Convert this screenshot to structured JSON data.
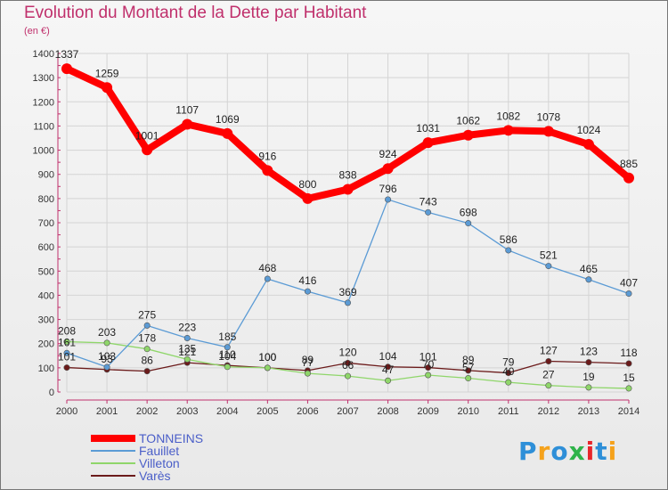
{
  "chart_data": {
    "type": "line",
    "title": "Evolution du Montant de la Dette par Habitant",
    "subtitle": "(en €)",
    "x": [
      "2000",
      "2001",
      "2002",
      "2003",
      "2004",
      "2005",
      "2006",
      "2007",
      "2008",
      "2009",
      "2010",
      "2011",
      "2012",
      "2013",
      "2014"
    ],
    "ylim": [
      0,
      1400
    ],
    "yticks": [
      0,
      100,
      200,
      300,
      400,
      500,
      600,
      700,
      800,
      900,
      1000,
      1100,
      1200,
      1300,
      1400
    ],
    "grid": true,
    "legend_position": "bottom-left",
    "series": [
      {
        "name": "TONNEINS",
        "color": "#ff0000",
        "values": [
          1337,
          1259,
          1001,
          1107,
          1069,
          916,
          800,
          838,
          924,
          1031,
          1062,
          1082,
          1078,
          1024,
          885
        ]
      },
      {
        "name": "Fauillet",
        "color": "#5b9bd5",
        "values": [
          161,
          103,
          275,
          223,
          185,
          468,
          416,
          369,
          796,
          743,
          698,
          586,
          521,
          465,
          407
        ]
      },
      {
        "name": "Villeton",
        "color": "#8fd66a",
        "values": [
          208,
          203,
          178,
          135,
          104,
          100,
          77,
          66,
          47,
          70,
          57,
          40,
          27,
          19,
          15
        ]
      },
      {
        "name": "Varès",
        "color": "#6b1a1a",
        "values": [
          101,
          93,
          86,
          121,
          110,
          100,
          89,
          120,
          104,
          101,
          89,
          79,
          127,
          123,
          118
        ]
      }
    ]
  },
  "logo": {
    "text": "Proxiti",
    "colors": [
      "#2e8fd8",
      "#f5a21c",
      "#2e8fd8",
      "#2fb34a",
      "#e8262b",
      "#2e8fd8",
      "#f5a21c"
    ]
  }
}
